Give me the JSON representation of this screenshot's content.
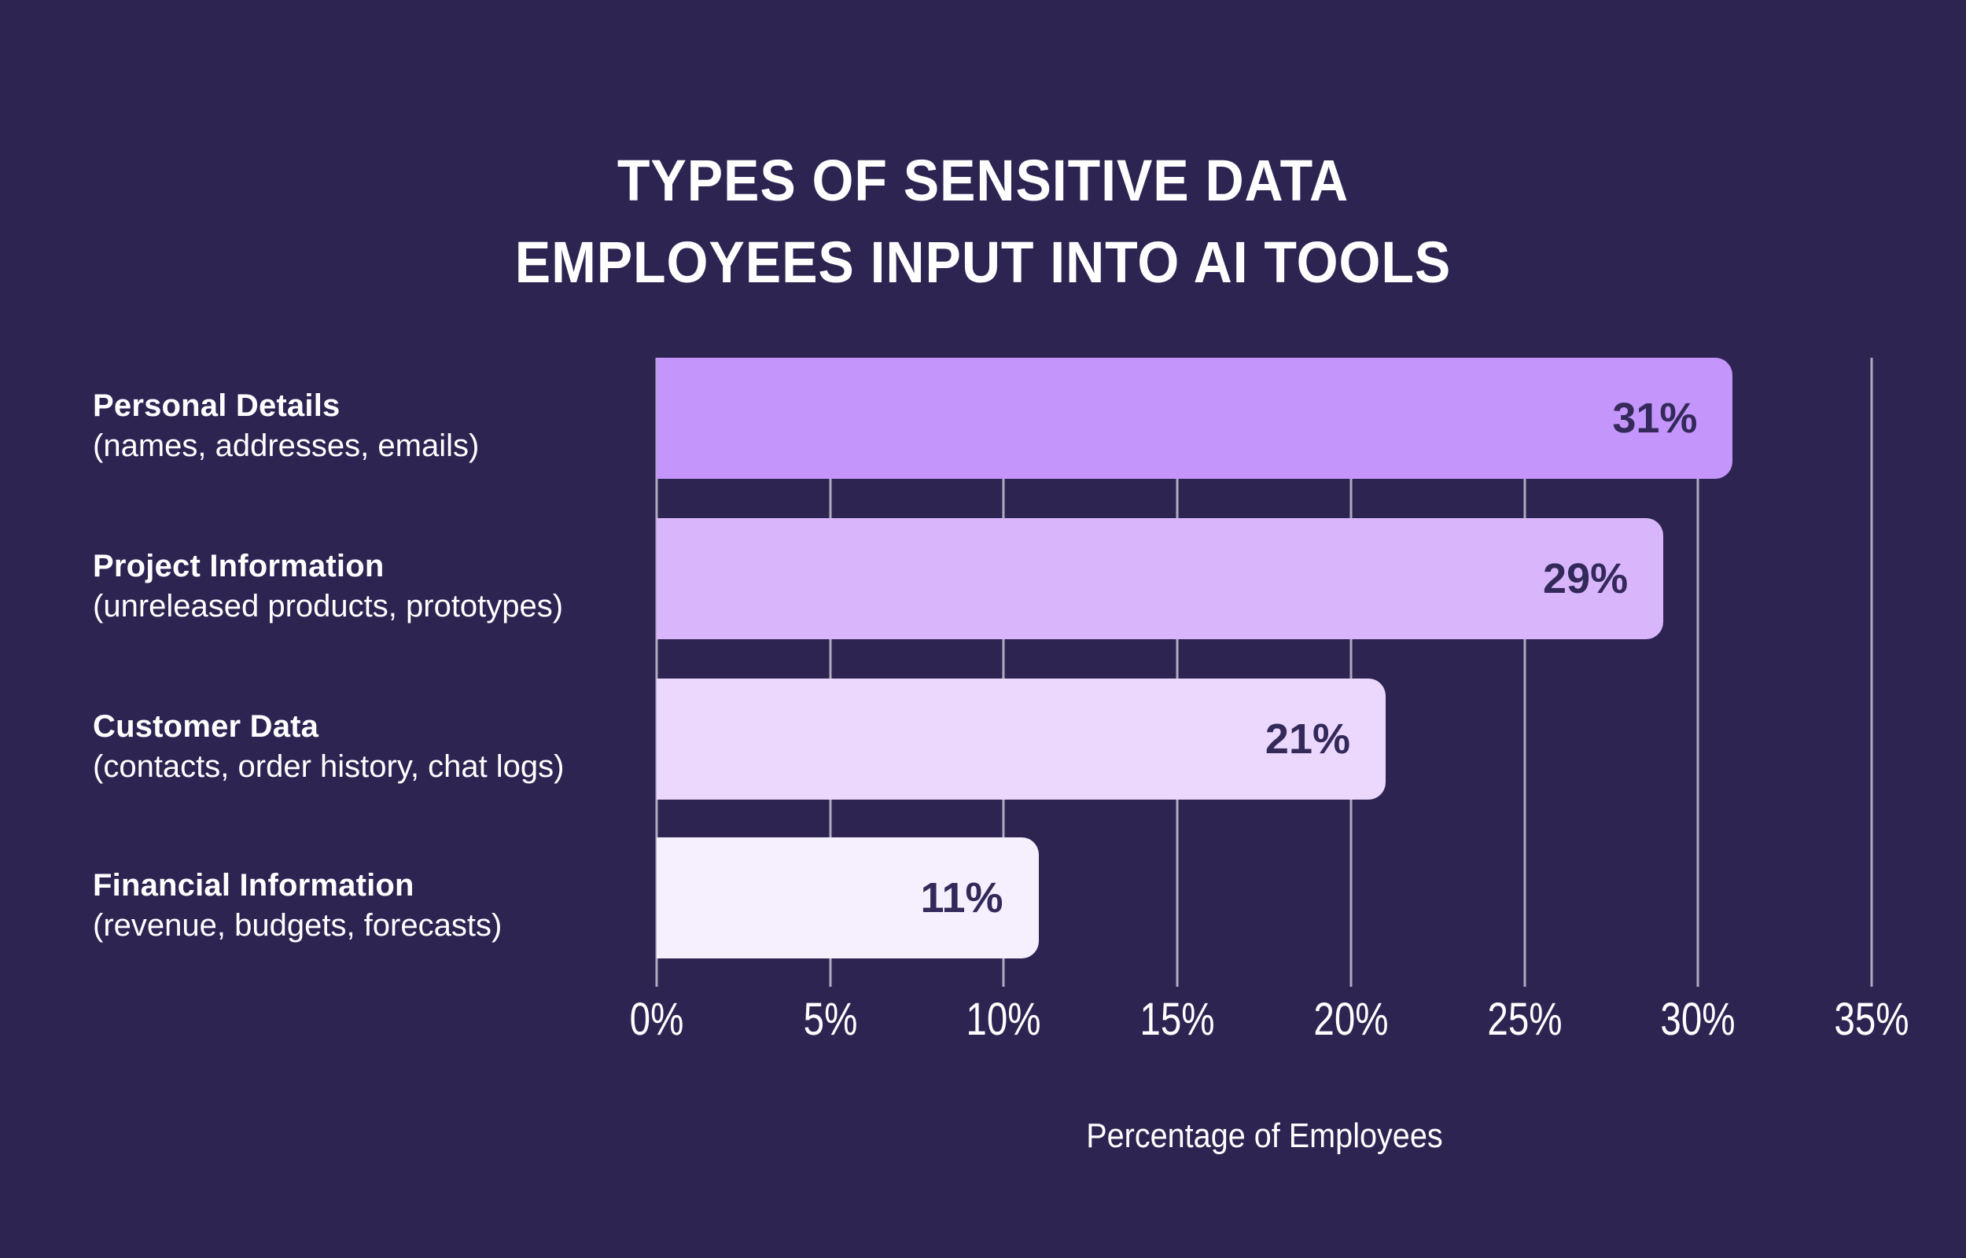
{
  "title": {
    "line1": "TYPES OF SENSITIVE DATA",
    "line2": "EMPLOYEES INPUT INTO AI TOOLS"
  },
  "chart_data": {
    "type": "bar",
    "orientation": "horizontal",
    "title": "TYPES OF SENSITIVE DATA EMPLOYEES INPUT INTO AI TOOLS",
    "categories": [
      "Personal Details",
      "Project Information",
      "Customer Data",
      "Financial Information"
    ],
    "category_subtitles": [
      "(names, addresses, emails)",
      "(unreleased products, prototypes)",
      "(contacts, order history, chat logs)",
      "(revenue, budgets, forecasts)"
    ],
    "values": [
      31,
      29,
      21,
      11
    ],
    "value_labels": [
      "31%",
      "29%",
      "21%",
      "11%"
    ],
    "xlabel": "Percentage of Employees",
    "ylabel": "",
    "x_ticks": [
      "0%",
      "5%",
      "10%",
      "15%",
      "20%",
      "25%",
      "30%",
      "35%"
    ],
    "xlim": [
      0,
      35
    ],
    "grid": true,
    "legend": false,
    "colors": {
      "background": "#2e2452",
      "bar_colors": [
        "#c495fa",
        "#d9b6fc",
        "#ebd8fc",
        "#f6effd"
      ],
      "gridline": "rgba(255,255,255,0.62)",
      "value_text": "#332a5a",
      "label_text": "#ffffff"
    }
  }
}
